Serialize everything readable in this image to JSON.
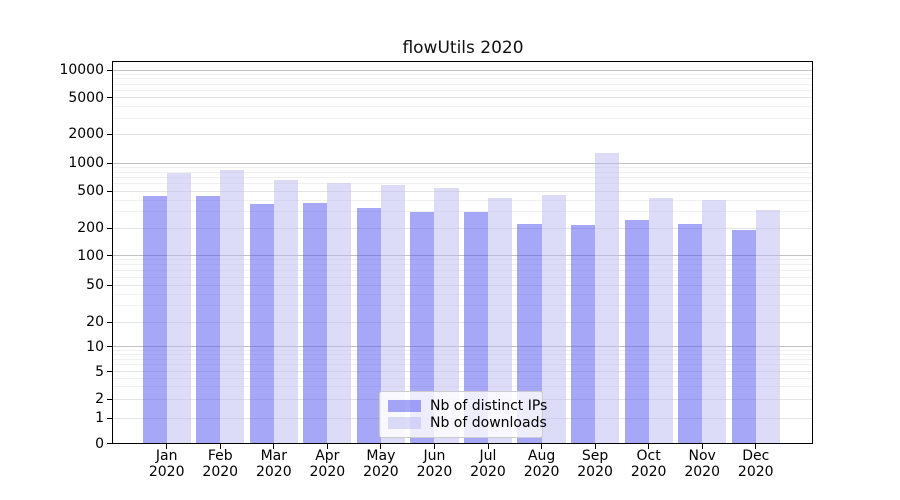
{
  "chart_data": {
    "type": "bar",
    "title": "flowUtils 2020",
    "categories": [
      "Jan",
      "Feb",
      "Mar",
      "Apr",
      "May",
      "Jun",
      "Jul",
      "Aug",
      "Sep",
      "Oct",
      "Nov",
      "Dec"
    ],
    "x_tick_year": "2020",
    "series": [
      {
        "name": "Nb of distinct IPs",
        "color": "rgba(80,80,240,0.5)",
        "values": [
          450,
          445,
          365,
          370,
          330,
          300,
          300,
          220,
          215,
          245,
          225,
          190
        ]
      },
      {
        "name": "Nb of downloads",
        "color": "rgba(185,185,241,0.5)",
        "values": [
          790,
          840,
          660,
          615,
          580,
          540,
          425,
          455,
          1270,
          420,
          400,
          315
        ]
      }
    ],
    "xlabel": "",
    "ylabel": "",
    "yscale": "symlog",
    "ylim": [
      0,
      12500
    ],
    "y_ticks": [
      10000,
      5000,
      2000,
      1000,
      500,
      200,
      100,
      50,
      20,
      10,
      5,
      2,
      1,
      0
    ],
    "grid": "both",
    "legend_position": "lower center"
  },
  "legend": {
    "items": [
      {
        "label": "Nb of distinct IPs"
      },
      {
        "label": "Nb of downloads"
      }
    ]
  }
}
